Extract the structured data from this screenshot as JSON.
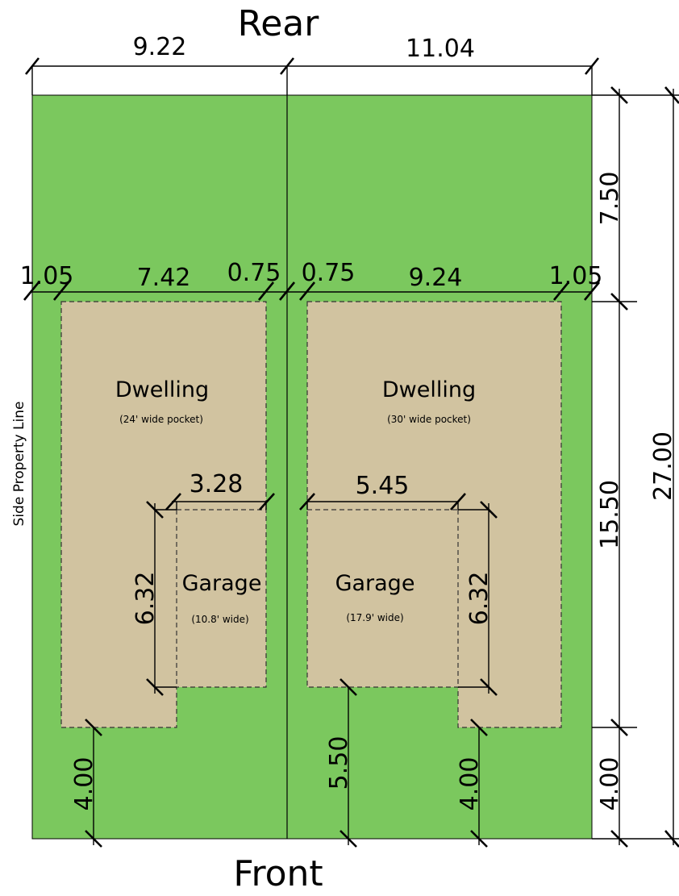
{
  "labels": {
    "rear": "Rear",
    "front": "Front",
    "side_property_line": "Side Property Line"
  },
  "lots": {
    "left": {
      "dwelling_title": "Dwelling",
      "dwelling_note": "(24' wide pocket)",
      "garage_title": "Garage",
      "garage_note": "(10.8' wide)"
    },
    "right": {
      "dwelling_title": "Dwelling",
      "dwelling_note": "(30' wide pocket)",
      "garage_title": "Garage",
      "garage_note": "(17.9' wide)"
    }
  },
  "dimensions": {
    "lot_width_left": "9.22",
    "lot_width_right": "11.04",
    "rear_setback": "7.50",
    "dwelling_depth": "15.50",
    "front_setback": "4.00",
    "lot_depth": "27.00",
    "left_side_setback": "1.05",
    "left_dwelling_width": "7.42",
    "left_party_setback": "0.75",
    "right_party_setback": "0.75",
    "right_dwelling_width": "9.24",
    "right_side_setback": "1.05",
    "left_garage_width": "3.28",
    "right_garage_width": "5.45",
    "left_garage_depth": "6.32",
    "right_garage_depth": "6.32",
    "left_front_setback": "4.00",
    "right_garage_front_setback": "5.50",
    "right_front_setback": "4.00"
  },
  "colors": {
    "lawn": "#7BC85E",
    "building": "#D1C3A0",
    "lines": "#000000"
  }
}
